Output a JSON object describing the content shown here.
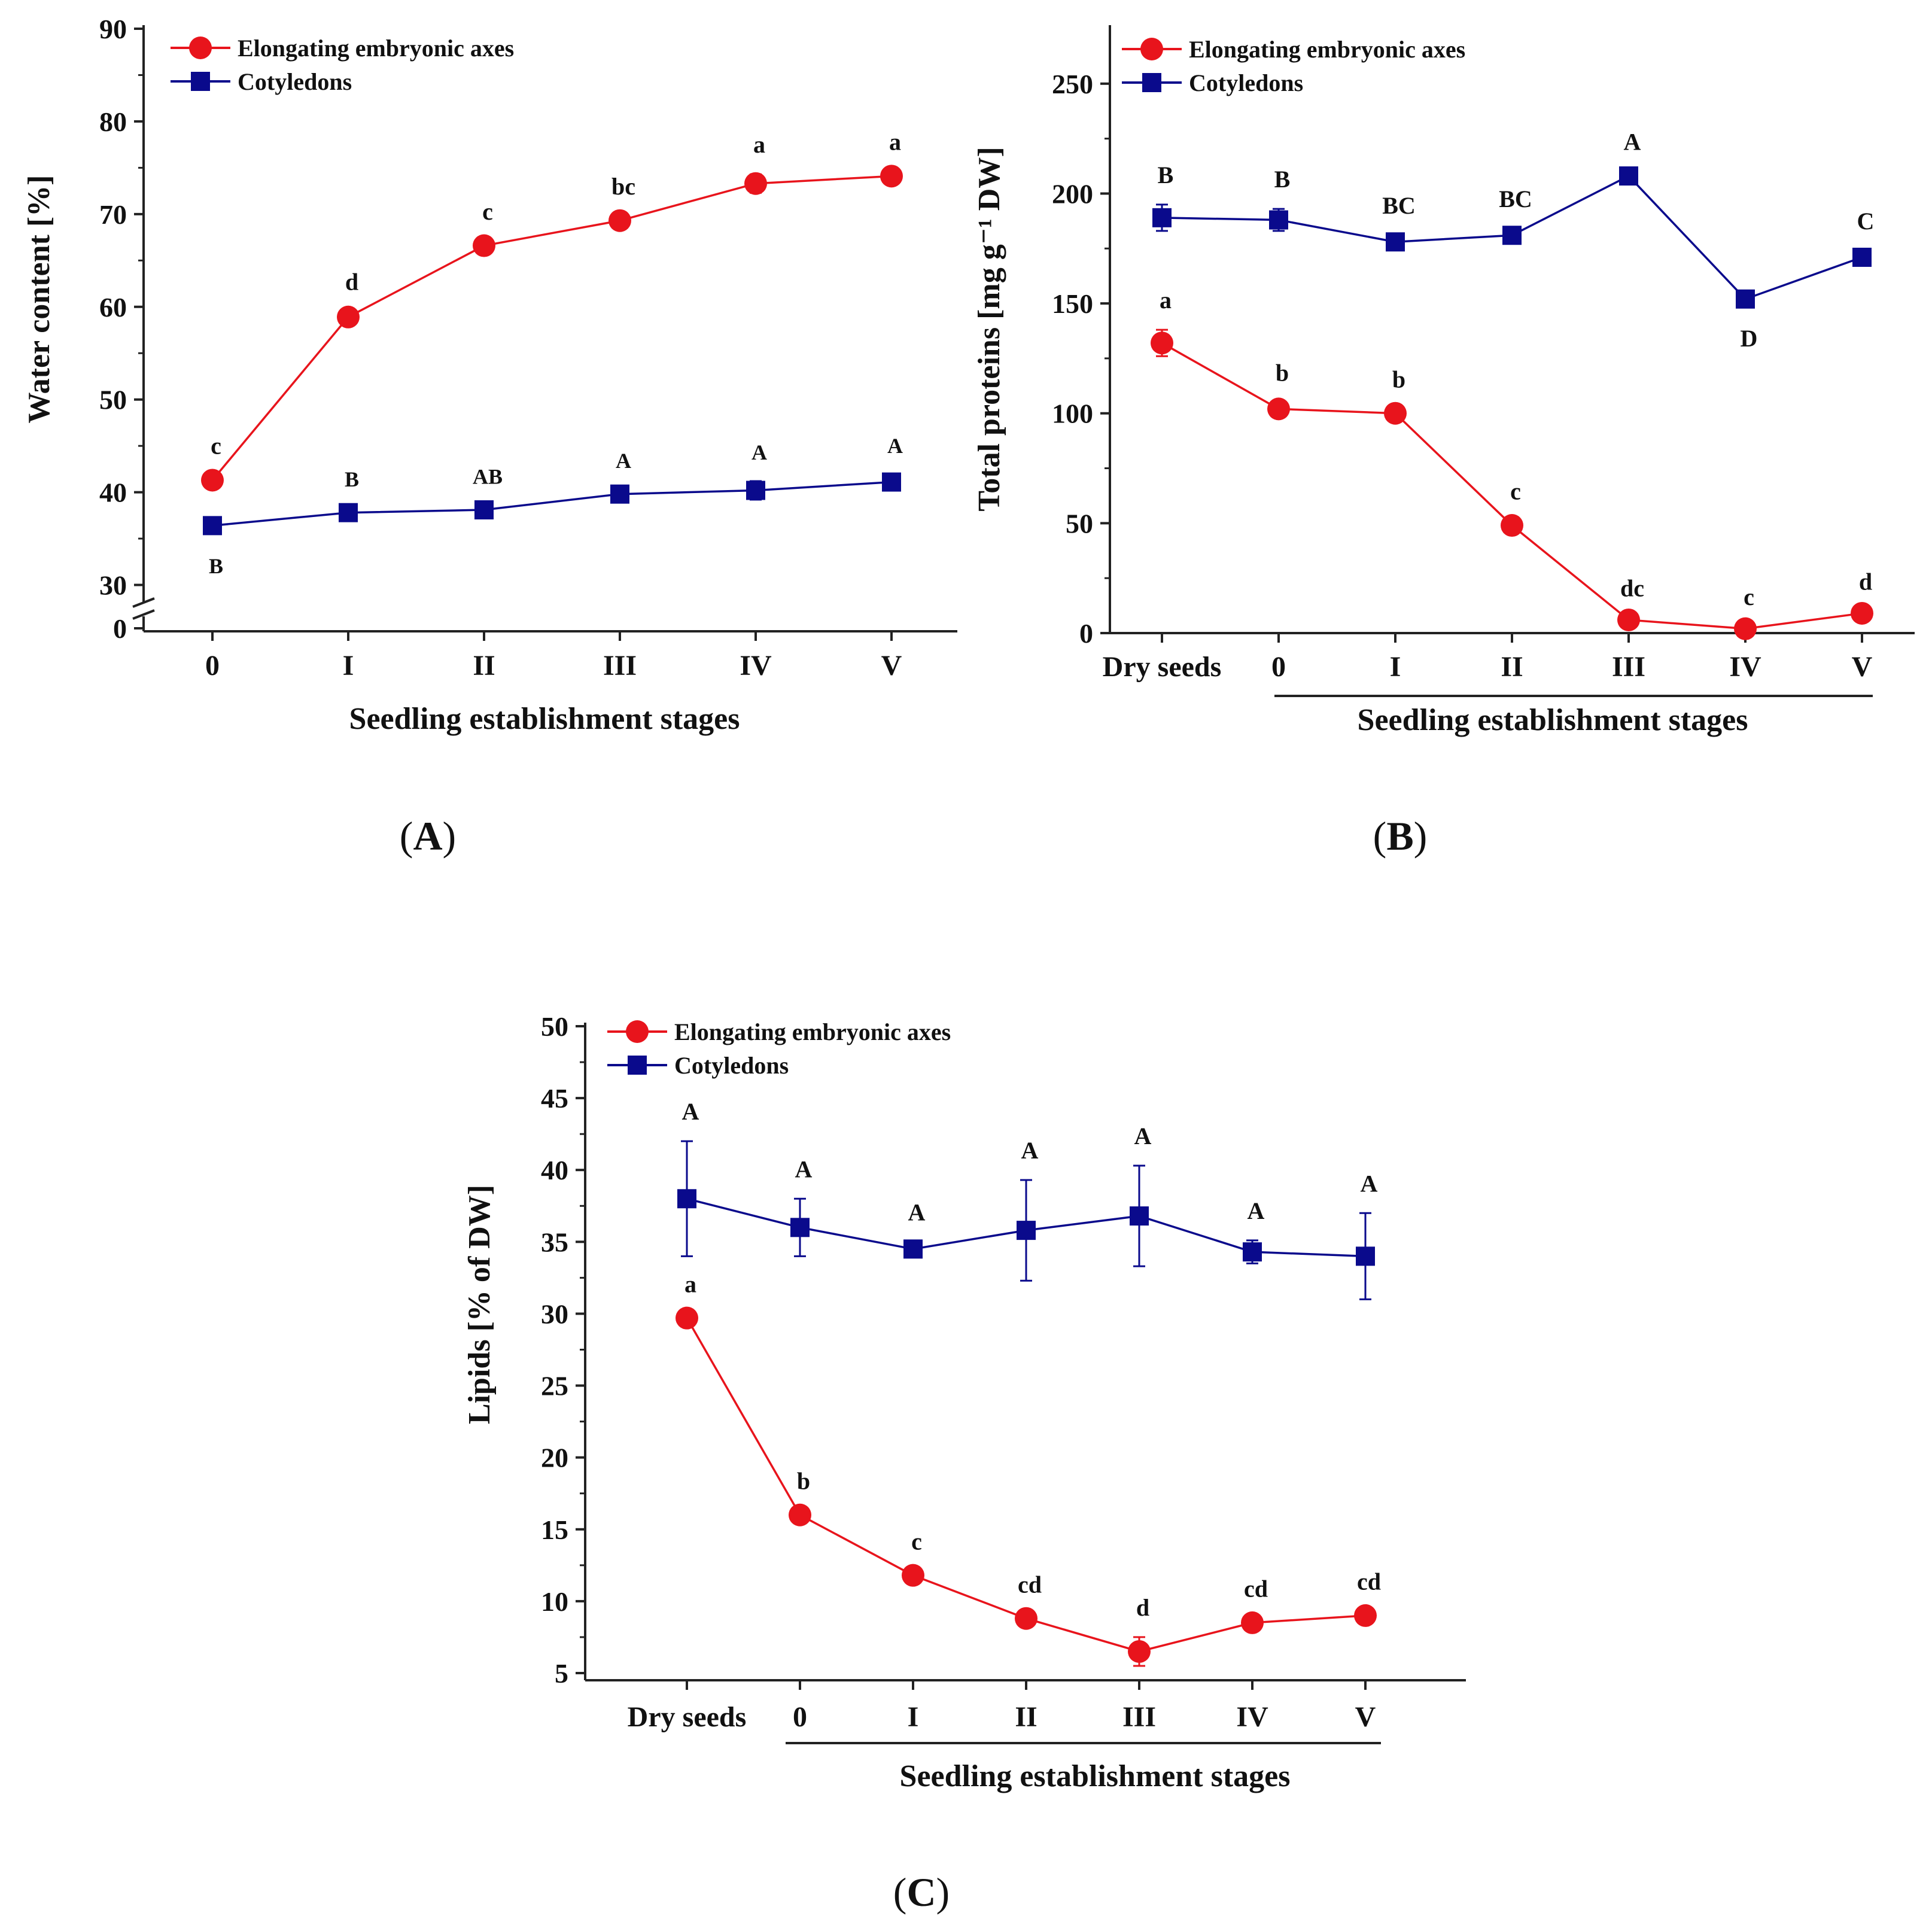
{
  "chart_data": [
    {
      "type": "line",
      "panel_label": "A",
      "xlabel": "Seedling establishment stages",
      "ylabel": "Water content [%]",
      "categories": [
        "0",
        "I",
        "II",
        "III",
        "IV",
        "V"
      ],
      "ylim": [
        25,
        90
      ],
      "yticks": [
        "0",
        "30",
        "40",
        "50",
        "60",
        "70",
        "80",
        "90"
      ],
      "axis_break": true,
      "legend": {
        "position": "top-left",
        "entries": [
          "Elongating embryonic axes",
          "Cotyledons"
        ]
      },
      "series": [
        {
          "name": "Elongating embryonic axes",
          "color": "#e8141c",
          "marker": "circle",
          "values": [
            41.3,
            58.9,
            66.6,
            69.3,
            73.3,
            74.1
          ],
          "errors": [
            0.5,
            0.6,
            0.5,
            0.5,
            1.0,
            0.5
          ],
          "labels": [
            "c",
            "d",
            "c",
            "bc",
            "a",
            "a"
          ]
        },
        {
          "name": "Cotyledons",
          "color": "#0a0a8c",
          "marker": "square",
          "values": [
            36.4,
            37.8,
            38.1,
            39.8,
            40.2,
            41.1
          ],
          "errors": [
            0.5,
            0.5,
            0.5,
            0.5,
            1.0,
            0.8
          ],
          "labels": [
            "B",
            "B",
            "AB",
            "A",
            "A",
            "A"
          ]
        }
      ]
    },
    {
      "type": "line",
      "panel_label": "B",
      "xlabel": "Seedling establishment stages",
      "ylabel": "Total proteins [mg g⁻¹ DW]",
      "categories": [
        "Dry seeds",
        "0",
        "I",
        "II",
        "III",
        "IV",
        "V"
      ],
      "ylim": [
        0,
        275
      ],
      "yticks": [
        "0",
        "50",
        "100",
        "150",
        "200",
        "250"
      ],
      "legend": {
        "position": "top-left",
        "entries": [
          "Elongating embryonic axes",
          "Cotyledons"
        ]
      },
      "series": [
        {
          "name": "Elongating embryonic axes",
          "color": "#e8141c",
          "marker": "circle",
          "values": [
            132,
            102,
            100,
            49,
            6,
            2,
            9
          ],
          "errors": [
            6,
            3,
            2,
            2,
            1,
            1,
            1
          ],
          "labels": [
            "a",
            "b",
            "b",
            "c",
            "dc",
            "c",
            "d"
          ]
        },
        {
          "name": "Cotyledons",
          "color": "#0a0a8c",
          "marker": "square",
          "values": [
            189,
            188,
            178,
            181,
            208,
            152,
            171
          ],
          "errors": [
            6,
            5,
            3,
            3,
            2,
            2,
            3
          ],
          "labels": [
            "B",
            "B",
            "BC",
            "BC",
            "A",
            "D",
            "C"
          ]
        }
      ]
    },
    {
      "type": "line",
      "panel_label": "C",
      "xlabel": "Seedling establishment stages",
      "ylabel": "Lipids [% of DW]",
      "categories": [
        "Dry seeds",
        "0",
        "I",
        "II",
        "III",
        "IV",
        "V"
      ],
      "ylim": [
        4.5,
        50
      ],
      "yticks": [
        "5",
        "10",
        "15",
        "20",
        "25",
        "30",
        "35",
        "40",
        "45",
        "50"
      ],
      "legend": {
        "position": "top-left",
        "entries": [
          "Elongating embryonic axes",
          "Cotyledons"
        ]
      },
      "series": [
        {
          "name": "Elongating embryonic axes",
          "color": "#e8141c",
          "marker": "circle",
          "values": [
            29.7,
            16.0,
            11.8,
            8.8,
            6.5,
            8.5,
            9.0
          ],
          "errors": [
            0.3,
            0.3,
            0.3,
            0.3,
            1.0,
            0.3,
            0.3
          ],
          "labels": [
            "a",
            "b",
            "c",
            "cd",
            "d",
            "cd",
            "cd"
          ]
        },
        {
          "name": "Cotyledons",
          "color": "#0a0a8c",
          "marker": "square",
          "values": [
            38.0,
            36.0,
            34.5,
            35.8,
            36.8,
            34.3,
            34.0
          ],
          "errors": [
            4.0,
            2.0,
            0.5,
            3.5,
            3.5,
            0.8,
            3.0
          ],
          "labels": [
            "A",
            "A",
            "A",
            "A",
            "A",
            "A",
            "A"
          ]
        }
      ]
    }
  ]
}
